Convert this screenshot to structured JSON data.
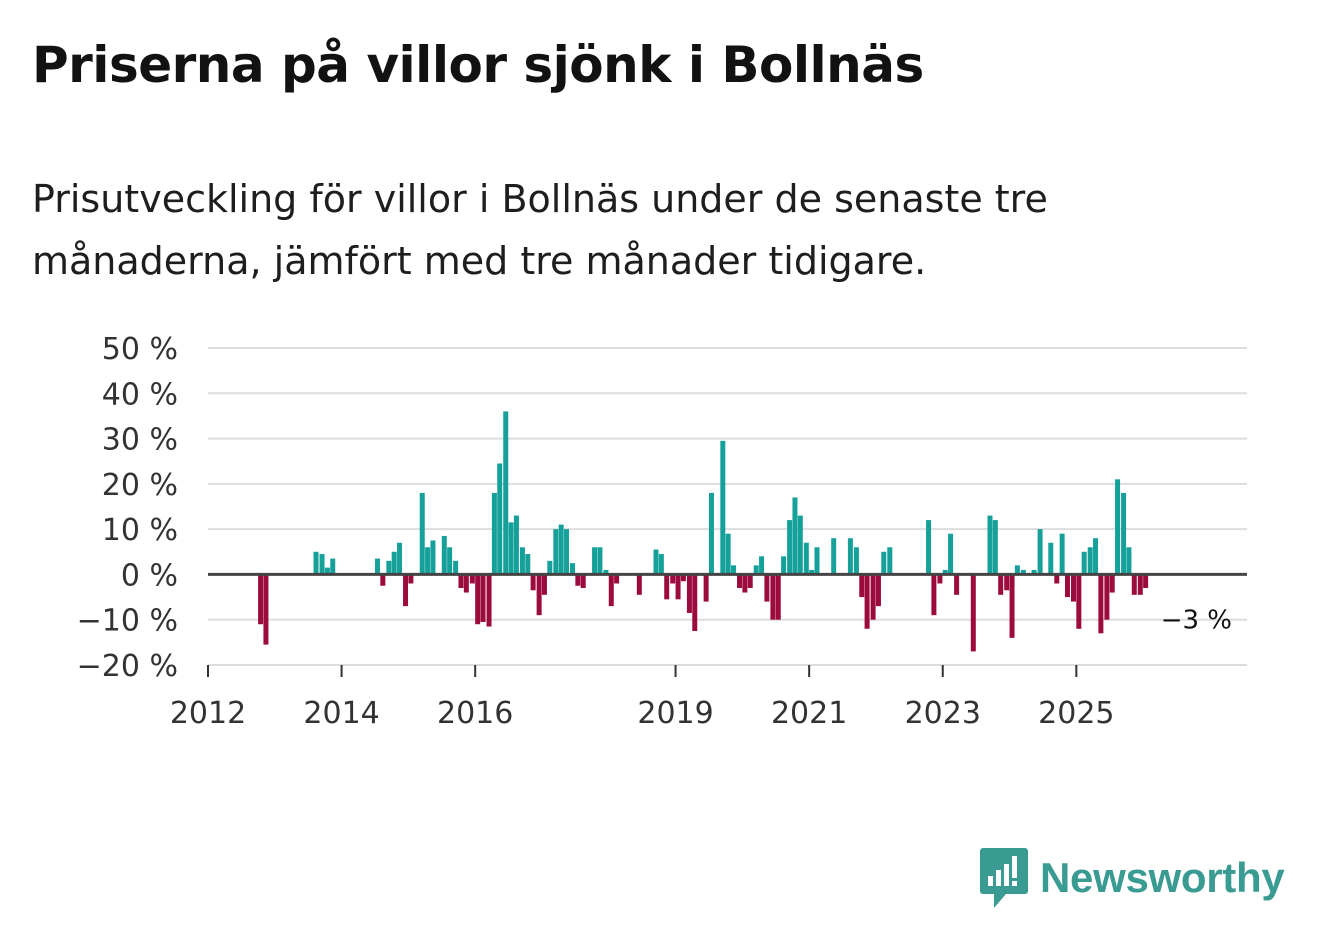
{
  "header": {
    "title": "Priserna på villor sjönk i Bollnäs",
    "subtitle": "Prisutveckling för villor i Bollnäs under de senaste tre månaderna, jämfört med tre månader tidigare."
  },
  "logo": {
    "icon": "newsworthy-logo-icon",
    "text": "Newsworthy"
  },
  "colors": {
    "positive": "#16a09a",
    "negative": "#9b0b3e",
    "grid": "#dddddd",
    "zero": "#444444"
  },
  "chart_data": {
    "type": "bar",
    "title": "Priserna på villor sjönk i Bollnäs",
    "xlabel": "",
    "ylabel": "",
    "ylim": [
      -20,
      50
    ],
    "y_ticks": [
      {
        "value": 50,
        "label": "50 %"
      },
      {
        "value": 40,
        "label": "40 %"
      },
      {
        "value": 30,
        "label": "30 %"
      },
      {
        "value": 20,
        "label": "20 %"
      },
      {
        "value": 10,
        "label": "10 %"
      },
      {
        "value": 0,
        "label": "0 %"
      },
      {
        "value": -10,
        "label": "−10 %"
      },
      {
        "value": -20,
        "label": "−20 %"
      }
    ],
    "x_ticks": [
      {
        "value": 2012.0,
        "label": "2012"
      },
      {
        "value": 2014.0,
        "label": "2014"
      },
      {
        "value": 2016.0,
        "label": "2016"
      },
      {
        "value": 2019.0,
        "label": "2019"
      },
      {
        "value": 2021.0,
        "label": "2021"
      },
      {
        "value": 2023.0,
        "label": "2023"
      },
      {
        "value": 2025.0,
        "label": "2025"
      }
    ],
    "x_range": [
      2012.0,
      2027.6
    ],
    "end_label": "−3 %",
    "series": [
      {
        "name": "Prisutveckling",
        "points": [
          {
            "x": 2012.75,
            "y": -11
          },
          {
            "x": 2012.83,
            "y": -15.5
          },
          {
            "x": 2013.58,
            "y": 5
          },
          {
            "x": 2013.67,
            "y": 4.5
          },
          {
            "x": 2013.75,
            "y": 1.5
          },
          {
            "x": 2013.83,
            "y": 3.5
          },
          {
            "x": 2014.5,
            "y": 3.5
          },
          {
            "x": 2014.58,
            "y": -2.5
          },
          {
            "x": 2014.67,
            "y": 3
          },
          {
            "x": 2014.75,
            "y": 5
          },
          {
            "x": 2014.83,
            "y": 7
          },
          {
            "x": 2014.92,
            "y": -7
          },
          {
            "x": 2015.0,
            "y": -2
          },
          {
            "x": 2015.17,
            "y": 18
          },
          {
            "x": 2015.25,
            "y": 6
          },
          {
            "x": 2015.33,
            "y": 7.5
          },
          {
            "x": 2015.5,
            "y": 8.5
          },
          {
            "x": 2015.58,
            "y": 6
          },
          {
            "x": 2015.67,
            "y": 3
          },
          {
            "x": 2015.75,
            "y": -3
          },
          {
            "x": 2015.83,
            "y": -4
          },
          {
            "x": 2015.92,
            "y": -2
          },
          {
            "x": 2016.0,
            "y": -11
          },
          {
            "x": 2016.08,
            "y": -10.5
          },
          {
            "x": 2016.17,
            "y": -11.5
          },
          {
            "x": 2016.25,
            "y": 18
          },
          {
            "x": 2016.33,
            "y": 24.5
          },
          {
            "x": 2016.42,
            "y": 36
          },
          {
            "x": 2016.5,
            "y": 11.5
          },
          {
            "x": 2016.58,
            "y": 13
          },
          {
            "x": 2016.67,
            "y": 6
          },
          {
            "x": 2016.75,
            "y": 4.5
          },
          {
            "x": 2016.83,
            "y": -3.5
          },
          {
            "x": 2016.92,
            "y": -9
          },
          {
            "x": 2017.0,
            "y": -4.5
          },
          {
            "x": 2017.08,
            "y": 3
          },
          {
            "x": 2017.17,
            "y": 10
          },
          {
            "x": 2017.25,
            "y": 11
          },
          {
            "x": 2017.33,
            "y": 10
          },
          {
            "x": 2017.42,
            "y": 2.5
          },
          {
            "x": 2017.5,
            "y": -2.5
          },
          {
            "x": 2017.58,
            "y": -3
          },
          {
            "x": 2017.75,
            "y": 6
          },
          {
            "x": 2017.83,
            "y": 6
          },
          {
            "x": 2017.92,
            "y": 1
          },
          {
            "x": 2018.0,
            "y": -7
          },
          {
            "x": 2018.08,
            "y": -2
          },
          {
            "x": 2018.42,
            "y": -4.5
          },
          {
            "x": 2018.67,
            "y": 5.5
          },
          {
            "x": 2018.75,
            "y": 4.5
          },
          {
            "x": 2018.83,
            "y": -5.5
          },
          {
            "x": 2018.92,
            "y": -2
          },
          {
            "x": 2019.0,
            "y": -5.5
          },
          {
            "x": 2019.08,
            "y": -1.5
          },
          {
            "x": 2019.17,
            "y": -8.5
          },
          {
            "x": 2019.25,
            "y": -12.5
          },
          {
            "x": 2019.42,
            "y": -6
          },
          {
            "x": 2019.5,
            "y": 18
          },
          {
            "x": 2019.67,
            "y": 29.5
          },
          {
            "x": 2019.75,
            "y": 9
          },
          {
            "x": 2019.83,
            "y": 2
          },
          {
            "x": 2019.92,
            "y": -3
          },
          {
            "x": 2020.0,
            "y": -4
          },
          {
            "x": 2020.08,
            "y": -3
          },
          {
            "x": 2020.17,
            "y": 2
          },
          {
            "x": 2020.25,
            "y": 4
          },
          {
            "x": 2020.33,
            "y": -6
          },
          {
            "x": 2020.42,
            "y": -10
          },
          {
            "x": 2020.5,
            "y": -10
          },
          {
            "x": 2020.58,
            "y": 4
          },
          {
            "x": 2020.67,
            "y": 12
          },
          {
            "x": 2020.75,
            "y": 17
          },
          {
            "x": 2020.83,
            "y": 13
          },
          {
            "x": 2020.92,
            "y": 7
          },
          {
            "x": 2021.0,
            "y": 1
          },
          {
            "x": 2021.08,
            "y": 6
          },
          {
            "x": 2021.33,
            "y": 8
          },
          {
            "x": 2021.58,
            "y": 8
          },
          {
            "x": 2021.67,
            "y": 6
          },
          {
            "x": 2021.75,
            "y": -5
          },
          {
            "x": 2021.83,
            "y": -12
          },
          {
            "x": 2021.92,
            "y": -10
          },
          {
            "x": 2022.0,
            "y": -7
          },
          {
            "x": 2022.08,
            "y": 5
          },
          {
            "x": 2022.17,
            "y": 6
          },
          {
            "x": 2022.75,
            "y": 12
          },
          {
            "x": 2022.83,
            "y": -9
          },
          {
            "x": 2022.92,
            "y": -2
          },
          {
            "x": 2023.0,
            "y": 1
          },
          {
            "x": 2023.08,
            "y": 9
          },
          {
            "x": 2023.17,
            "y": -4.5
          },
          {
            "x": 2023.42,
            "y": -17
          },
          {
            "x": 2023.67,
            "y": 13
          },
          {
            "x": 2023.75,
            "y": 12
          },
          {
            "x": 2023.83,
            "y": -4.5
          },
          {
            "x": 2023.92,
            "y": -3.5
          },
          {
            "x": 2024.0,
            "y": -14
          },
          {
            "x": 2024.08,
            "y": 2
          },
          {
            "x": 2024.17,
            "y": 1
          },
          {
            "x": 2024.33,
            "y": 1
          },
          {
            "x": 2024.42,
            "y": 10
          },
          {
            "x": 2024.58,
            "y": 7
          },
          {
            "x": 2024.67,
            "y": -2
          },
          {
            "x": 2024.75,
            "y": 9
          },
          {
            "x": 2024.83,
            "y": -5
          },
          {
            "x": 2024.92,
            "y": -6
          },
          {
            "x": 2025.0,
            "y": -12
          },
          {
            "x": 2025.08,
            "y": 5
          },
          {
            "x": 2025.17,
            "y": 6
          },
          {
            "x": 2025.25,
            "y": 8
          },
          {
            "x": 2025.33,
            "y": -13
          },
          {
            "x": 2025.42,
            "y": -10
          },
          {
            "x": 2025.5,
            "y": -4
          },
          {
            "x": 2025.58,
            "y": 21
          },
          {
            "x": 2025.67,
            "y": 18
          },
          {
            "x": 2025.75,
            "y": 6
          },
          {
            "x": 2025.83,
            "y": -4.5
          },
          {
            "x": 2025.92,
            "y": -4.5
          },
          {
            "x": 2026.0,
            "y": -3
          }
        ]
      }
    ]
  }
}
